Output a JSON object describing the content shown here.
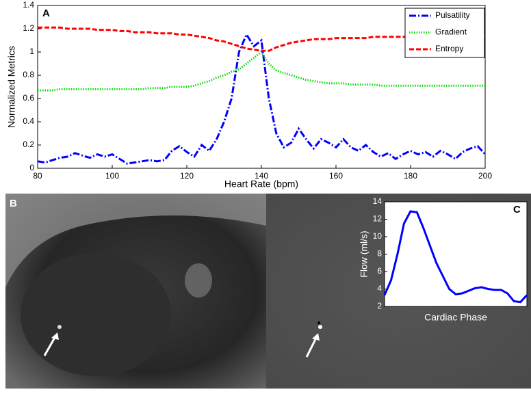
{
  "chart_data": [
    {
      "type": "line",
      "panel_label": "A",
      "xlabel": "Heart Rate (bpm)",
      "ylabel": "Normalized Metrics",
      "x": [
        80,
        82,
        84,
        86,
        88,
        90,
        92,
        94,
        96,
        98,
        100,
        102,
        104,
        106,
        108,
        110,
        112,
        114,
        116,
        118,
        120,
        122,
        124,
        126,
        128,
        130,
        132,
        134,
        136,
        138,
        140,
        142,
        144,
        146,
        148,
        150,
        152,
        154,
        156,
        158,
        160,
        162,
        164,
        166,
        168,
        170,
        172,
        174,
        176,
        178,
        180,
        182,
        184,
        186,
        188,
        190,
        192,
        194,
        196,
        198,
        200
      ],
      "series": [
        {
          "name": "Pulsatility",
          "color": "#0000ff",
          "style": "dashdot",
          "values": [
            0.06,
            0.05,
            0.07,
            0.09,
            0.1,
            0.13,
            0.11,
            0.09,
            0.12,
            0.1,
            0.12,
            0.08,
            0.04,
            0.05,
            0.06,
            0.07,
            0.06,
            0.07,
            0.15,
            0.19,
            0.14,
            0.1,
            0.2,
            0.15,
            0.25,
            0.4,
            0.6,
            1.0,
            1.15,
            1.05,
            1.1,
            0.6,
            0.3,
            0.18,
            0.22,
            0.34,
            0.25,
            0.17,
            0.25,
            0.22,
            0.18,
            0.25,
            0.18,
            0.15,
            0.2,
            0.14,
            0.1,
            0.13,
            0.08,
            0.12,
            0.15,
            0.12,
            0.14,
            0.1,
            0.15,
            0.12,
            0.08,
            0.14,
            0.17,
            0.19,
            0.12
          ]
        },
        {
          "name": "Gradient",
          "color": "#00dd00",
          "style": "dotted",
          "values": [
            0.67,
            0.67,
            0.67,
            0.68,
            0.68,
            0.68,
            0.68,
            0.68,
            0.68,
            0.68,
            0.68,
            0.68,
            0.68,
            0.68,
            0.68,
            0.69,
            0.69,
            0.69,
            0.7,
            0.7,
            0.7,
            0.71,
            0.73,
            0.75,
            0.78,
            0.8,
            0.83,
            0.85,
            0.9,
            0.95,
            1.0,
            0.9,
            0.84,
            0.82,
            0.8,
            0.78,
            0.76,
            0.75,
            0.74,
            0.73,
            0.73,
            0.73,
            0.72,
            0.72,
            0.72,
            0.72,
            0.71,
            0.71,
            0.71,
            0.71,
            0.71,
            0.71,
            0.71,
            0.71,
            0.71,
            0.71,
            0.71,
            0.71,
            0.71,
            0.71,
            0.71
          ]
        },
        {
          "name": "Entropy",
          "color": "#ff0000",
          "style": "dashed",
          "values": [
            1.21,
            1.21,
            1.21,
            1.21,
            1.2,
            1.2,
            1.2,
            1.2,
            1.19,
            1.19,
            1.19,
            1.18,
            1.18,
            1.17,
            1.17,
            1.17,
            1.16,
            1.16,
            1.16,
            1.15,
            1.15,
            1.14,
            1.13,
            1.12,
            1.1,
            1.09,
            1.07,
            1.05,
            1.03,
            1.02,
            1.01,
            1.01,
            1.04,
            1.06,
            1.08,
            1.09,
            1.1,
            1.11,
            1.11,
            1.11,
            1.12,
            1.12,
            1.12,
            1.12,
            1.12,
            1.13,
            1.13,
            1.13,
            1.13,
            1.13,
            1.13,
            1.14,
            1.14,
            1.14,
            1.14,
            1.14,
            1.14,
            1.13,
            1.13,
            1.14,
            1.14
          ]
        }
      ],
      "xlim": [
        80,
        200
      ],
      "xticks": [
        80,
        100,
        120,
        140,
        160,
        180,
        200
      ],
      "ylim": [
        0,
        1.4
      ],
      "yticks": [
        0,
        0.2,
        0.4,
        0.6,
        0.8,
        1,
        1.2,
        1.4
      ],
      "legend": "upper right"
    },
    {
      "type": "line",
      "panel_label": "C",
      "xlabel": "Cardiac Phase",
      "ylabel": "Flow (ml/s)",
      "color": "#0000ff",
      "values": [
        3.3,
        5,
        8,
        11.5,
        12.9,
        12.8,
        11,
        9,
        7,
        5.5,
        4,
        3.4,
        3.5,
        3.8,
        4.1,
        4.2,
        4.0,
        3.9,
        3.9,
        3.5,
        2.6,
        2.5,
        3.3
      ],
      "ylim": [
        2,
        14
      ],
      "yticks": [
        2,
        4,
        6,
        8,
        10,
        12,
        14
      ]
    }
  ],
  "image_panel": {
    "label": "B"
  }
}
